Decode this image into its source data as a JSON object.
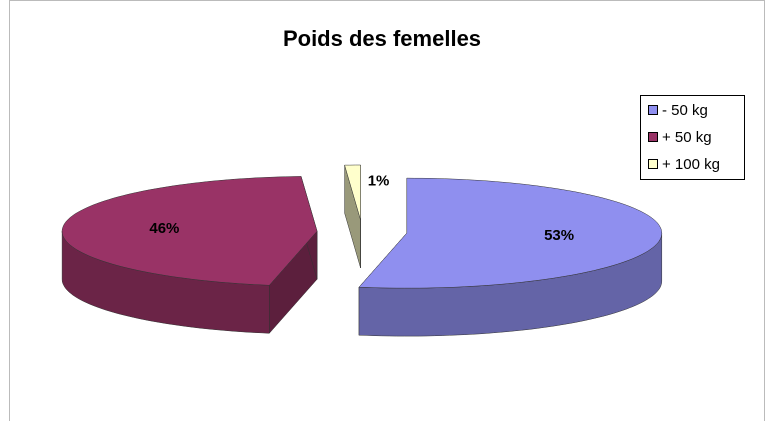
{
  "chart_data": {
    "type": "pie",
    "title": "Poids des femelles",
    "categories": [
      "- 50 kg",
      "+ 50 kg",
      "+ 100 kg"
    ],
    "values": [
      53,
      46,
      1
    ],
    "value_labels": [
      "53%",
      "46%",
      "1%"
    ],
    "colors": [
      "#8f8fef",
      "#993366",
      "#ffffcc"
    ],
    "legend": "right"
  }
}
